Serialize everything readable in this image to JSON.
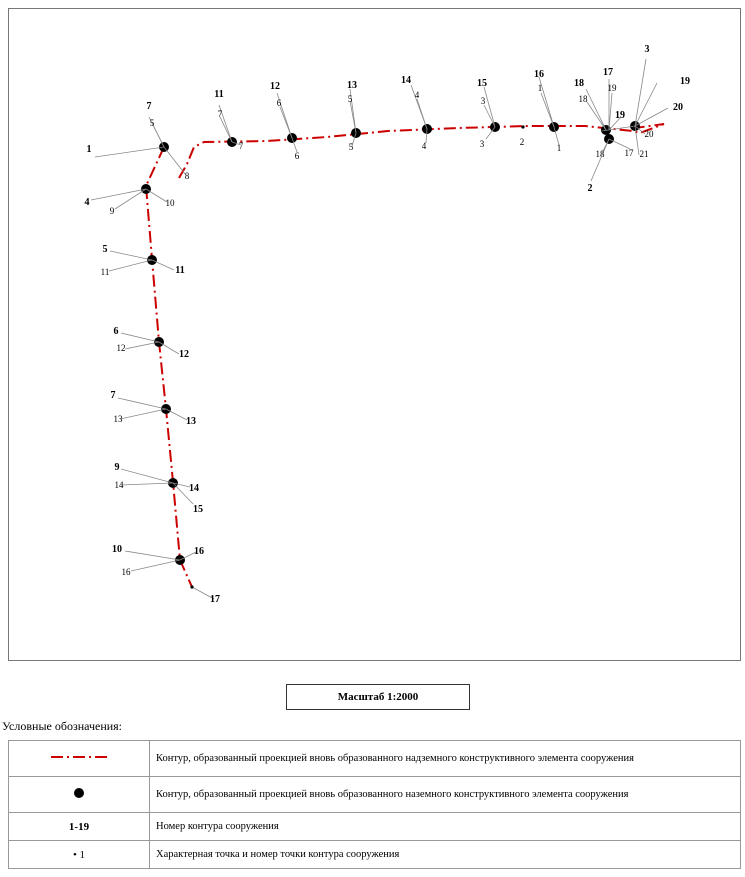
{
  "diagram": {
    "contour_numbers": [
      "1",
      "2",
      "3",
      "4",
      "5",
      "6",
      "7",
      "8",
      "9",
      "10",
      "11",
      "12",
      "13",
      "14",
      "15",
      "16",
      "17",
      "18",
      "19",
      "20"
    ],
    "point_numbers": [
      "1",
      "2",
      "3",
      "4",
      "5",
      "6",
      "7",
      "8",
      "9",
      "10",
      "11",
      "12",
      "13",
      "14",
      "15",
      "16",
      "17",
      "18",
      "19",
      "20",
      "21"
    ],
    "colors": {
      "contour_line": "#cc0000",
      "marker": "#000000",
      "leader": "#888888"
    },
    "icons": {
      "structure_marker": "filled-circle",
      "characteristic_point": "small-dot"
    }
  },
  "scale": {
    "label": "Масштаб 1:2000"
  },
  "legend": {
    "title": "Условные обозначения:",
    "rows": [
      {
        "symbol": "dash-dot-red-line",
        "text": "Контур, образованный проекцией вновь образованного надземного конструктивного элемента сооружения"
      },
      {
        "symbol": "filled-circle",
        "text": "Контур, образованный проекцией вновь образованного наземного конструктивного элемента сооружения"
      },
      {
        "symbol": "1-19",
        "text": "Номер контура сооружения"
      },
      {
        "symbol": "• 1",
        "text": "Характерная точка и номер точки контура сооружения"
      }
    ]
  }
}
